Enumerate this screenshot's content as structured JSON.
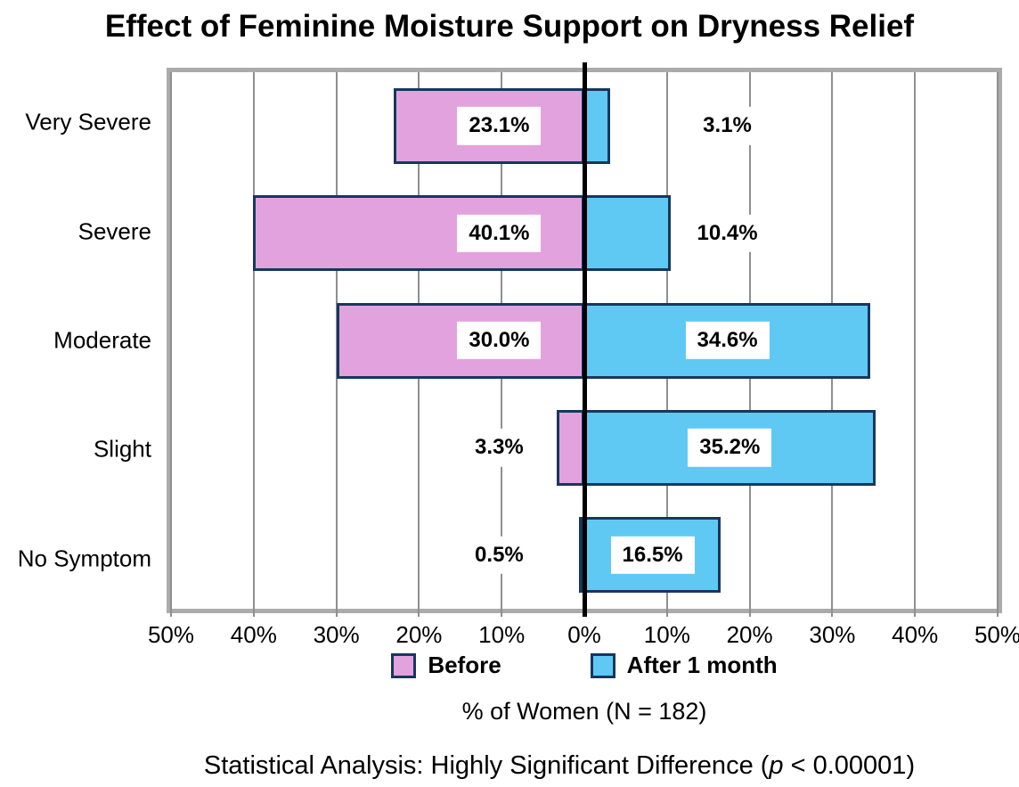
{
  "title": "Effect of Feminine Moisture Support on Dryness Relief",
  "chart_data": {
    "type": "bar",
    "variant": "diverging-horizontal",
    "categories": [
      "Very Severe",
      "Severe",
      "Moderate",
      "Slight",
      "No Symptom"
    ],
    "series": [
      {
        "name": "Before",
        "direction": "left",
        "color": "#E2A2DE",
        "values": [
          23.1,
          40.1,
          30.0,
          3.3,
          0.5
        ],
        "labels": [
          "23.1%",
          "40.1%",
          "30.0%",
          "3.3%",
          "0.5%"
        ]
      },
      {
        "name": "After 1 month",
        "direction": "right",
        "color": "#5FC9F4",
        "values": [
          3.1,
          10.4,
          34.6,
          35.2,
          16.5
        ],
        "labels": [
          "3.1%",
          "10.4%",
          "34.6%",
          "35.2%",
          "16.5%"
        ]
      }
    ],
    "x_ticks": [
      "50%",
      "40%",
      "30%",
      "20%",
      "10%",
      "0%",
      "10%",
      "20%",
      "30%",
      "40%",
      "50%"
    ],
    "xlim": [
      -50,
      50
    ],
    "xlabel": "% of Women (N = 182)",
    "grid": true,
    "legend_position": "bottom",
    "colors": {
      "bar_border": "#17375E",
      "gridline": "#8F8F8F",
      "plot_border": "#ABABAB",
      "zero_line": "#000000",
      "label_background": "#FFFFFF",
      "text": "#000000"
    }
  },
  "footer": {
    "prefix": "Statistical Analysis: Highly Significant Difference (",
    "p_symbol": "p",
    "suffix": " < 0.00001)"
  }
}
